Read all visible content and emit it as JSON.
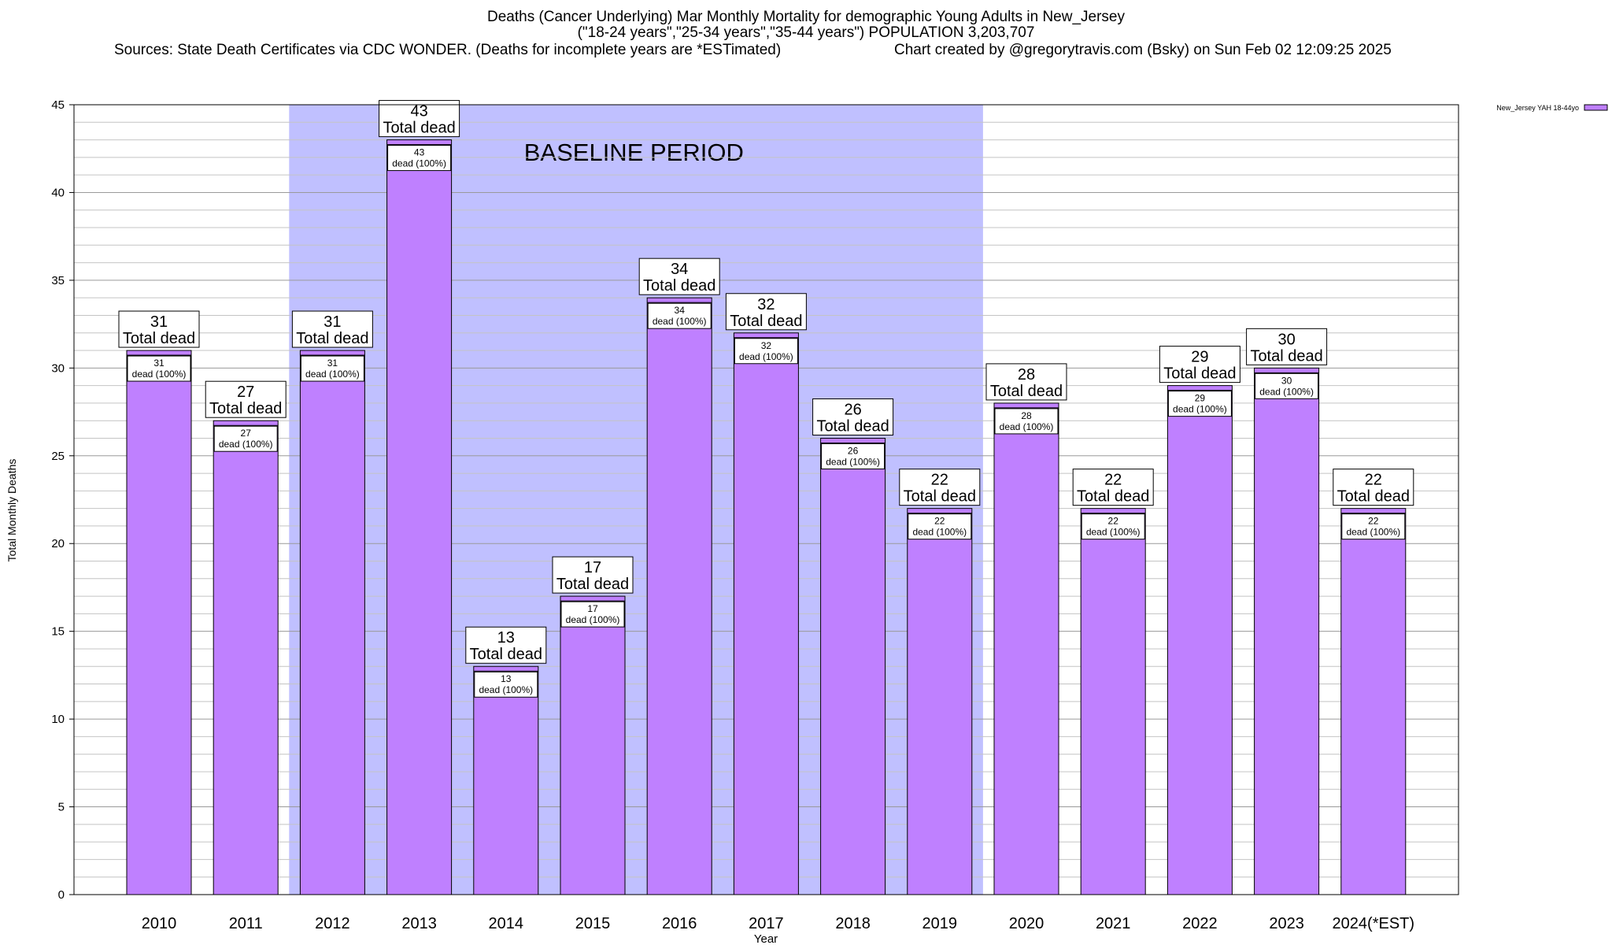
{
  "header": {
    "title_line1": "Deaths (Cancer Underlying) Mar Monthly Mortality for demographic Young Adults in New_Jersey",
    "title_line2": "(\"18-24 years\",\"25-34 years\",\"35-44 years\") POPULATION 3,203,707",
    "sources": "Sources: State Death Certificates via CDC WONDER. (Deaths for incomplete years are *ESTimated)",
    "credit": "Chart created by @gregorytravis.com (Bsky) on Sun Feb 02 12:09:25 2025"
  },
  "chart_data": {
    "type": "bar",
    "xlabel": "Year",
    "ylabel": "Total Monthly Deaths",
    "ylim": [
      0,
      45
    ],
    "y_ticks": [
      0,
      5,
      10,
      15,
      20,
      25,
      30,
      35,
      40,
      45
    ],
    "grid": true,
    "categories": [
      "2010",
      "2011",
      "2012",
      "2013",
      "2014",
      "2015",
      "2016",
      "2017",
      "2018",
      "2019",
      "2020",
      "2021",
      "2022",
      "2023",
      "2024(*EST)"
    ],
    "series": [
      {
        "name": "New_Jersey YAH 18-44yo",
        "values": [
          31,
          27,
          31,
          43,
          13,
          17,
          34,
          32,
          26,
          22,
          28,
          22,
          29,
          30,
          22
        ],
        "color": "#bf80ff"
      }
    ],
    "total_label": "Total dead",
    "inner_label_suffix": "dead (100%)",
    "baseline": {
      "label": "BASELINE PERIOD",
      "from": "2012",
      "to": "2019",
      "color": "#c0c0ff"
    },
    "legend_position": "top-right"
  }
}
